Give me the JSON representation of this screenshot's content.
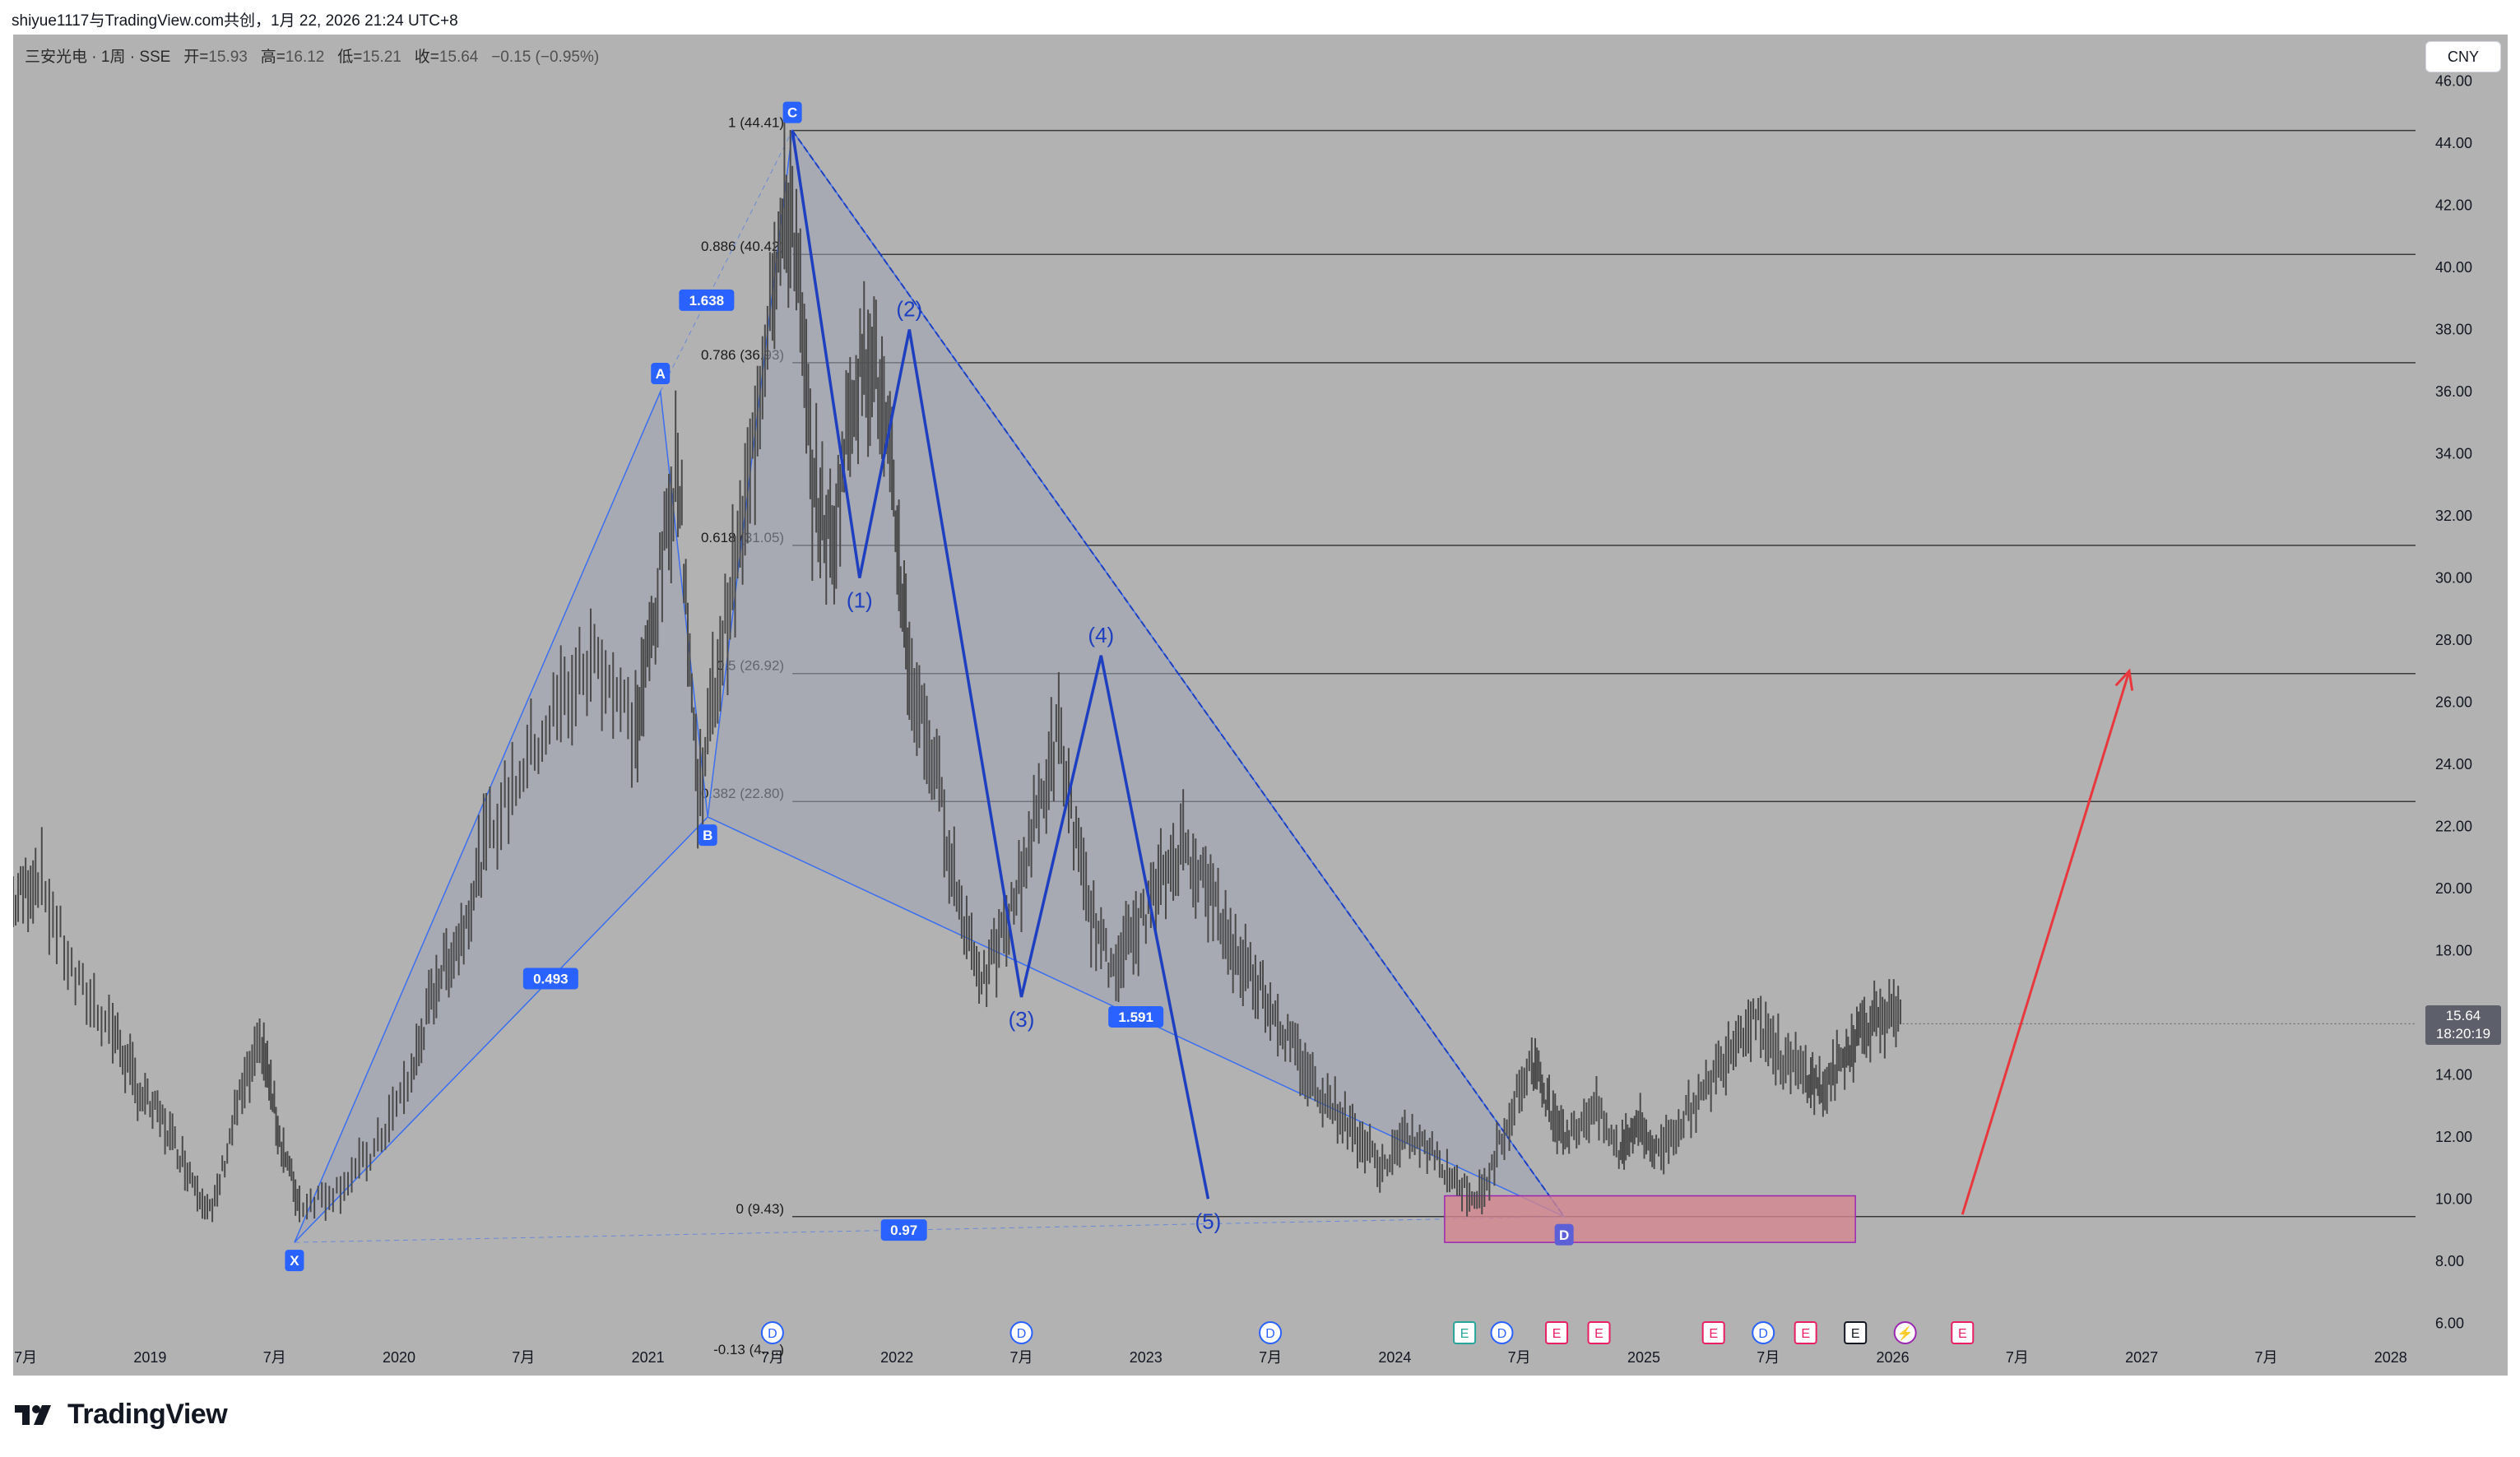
{
  "header": {
    "shared_by": "shiyue1117与TradingView.com共创，1月 22, 2026 21:24 UTC+8"
  },
  "symbol": {
    "name": "三安光电 · 1周 · SSE",
    "open_label": "开=",
    "open": "15.93",
    "high_label": "高=",
    "high": "16.12",
    "low_label": "低=",
    "low": "15.21",
    "close_label": "收=",
    "close": "15.64",
    "change": "−0.15 (−0.95%)"
  },
  "currency_button": "CNY",
  "last_price": {
    "value": "15.64",
    "countdown": "18:20:19"
  },
  "logo": "TradingView",
  "colors": {
    "chart_bg": "#b2b2b2",
    "pattern_fill": "#9fa4b3",
    "pattern_line": "#3b6ef0",
    "wave_line": "#1d3fc0",
    "arrow": "#e8383d",
    "box_fill": "#d4868e",
    "label_bg": "#2962ff"
  },
  "chart_data": {
    "type": "line",
    "x_axis": {
      "labels": [
        "7月",
        "2019",
        "7月",
        "2020",
        "7月",
        "2021",
        "7月",
        "2022",
        "7月",
        "2023",
        "7月",
        "2024",
        "7月",
        "2025",
        "7月",
        "2026",
        "7月",
        "2027",
        "7月",
        "2028"
      ],
      "range": [
        2018.45,
        2028.1
      ]
    },
    "y_axis": {
      "ticks": [
        "46.00",
        "44.00",
        "42.00",
        "40.00",
        "38.00",
        "36.00",
        "34.00",
        "32.00",
        "30.00",
        "28.00",
        "26.00",
        "24.00",
        "22.00",
        "20.00",
        "18.00",
        "16.00",
        "14.00",
        "12.00",
        "10.00",
        "8.00",
        "6.00"
      ],
      "range": [
        5.0,
        47.5
      ]
    },
    "price_series": {
      "name": "",
      "x": [
        2018.45,
        2018.55,
        2018.7,
        2018.85,
        2018.95,
        2019.05,
        2019.15,
        2019.25,
        2019.35,
        2019.45,
        2019.52,
        2019.6,
        2019.75,
        2019.9,
        2020.05,
        2020.15,
        2020.25,
        2020.35,
        2020.5,
        2020.65,
        2020.8,
        2020.95,
        2021.03,
        2021.12,
        2021.2,
        2021.3,
        2021.4,
        2021.5,
        2021.58,
        2021.66,
        2021.74,
        2021.82,
        2021.9,
        2021.98,
        2022.05,
        2022.15,
        2022.25,
        2022.35,
        2022.45,
        2022.55,
        2022.65,
        2022.75,
        2022.85,
        2022.95,
        2023.05,
        2023.15,
        2023.25,
        2023.35,
        2023.45,
        2023.55,
        2023.65,
        2023.75,
        2023.85,
        2023.95,
        2024.05,
        2024.15,
        2024.25,
        2024.35,
        2024.45,
        2024.55,
        2024.62,
        2024.7,
        2024.8,
        2024.9,
        2024.97,
        2025.05,
        2025.15,
        2025.25,
        2025.35,
        2025.45,
        2025.55,
        2025.65,
        2025.72,
        2025.8,
        2025.87,
        2025.95,
        2026.04
      ],
      "values": [
        19.5,
        20.5,
        17.0,
        15.5,
        13.5,
        12.5,
        11.0,
        9.5,
        13.0,
        15.0,
        12.0,
        9.8,
        10.3,
        11.5,
        14.0,
        17.0,
        18.5,
        21.5,
        24.0,
        26.0,
        27.5,
        25.0,
        29.0,
        34.0,
        23.0,
        28.0,
        32.5,
        40.0,
        42.0,
        33.0,
        31.0,
        36.0,
        37.5,
        33.0,
        27.0,
        24.0,
        19.5,
        17.0,
        19.0,
        22.0,
        25.0,
        20.0,
        17.5,
        18.5,
        20.0,
        21.5,
        20.0,
        18.0,
        17.0,
        15.5,
        14.0,
        13.0,
        12.0,
        11.0,
        12.0,
        11.5,
        10.5,
        10.0,
        12.5,
        14.5,
        13.0,
        12.0,
        13.0,
        11.5,
        12.5,
        11.5,
        12.5,
        13.5,
        15.0,
        16.0,
        14.5,
        14.0,
        13.5,
        14.5,
        15.5,
        16.0,
        15.64
      ]
    },
    "xabcd_pattern": {
      "points": [
        {
          "label": "X",
          "x": 2019.58,
          "y": 8.6
        },
        {
          "label": "A",
          "x": 2021.05,
          "y": 36.0
        },
        {
          "label": "B",
          "x": 2021.24,
          "y": 22.3
        },
        {
          "label": "C",
          "x": 2021.58,
          "y": 44.41
        },
        {
          "label": "D",
          "x": 2024.68,
          "y": 9.43
        }
      ],
      "ratios": [
        {
          "label": "0.493",
          "at": "XB"
        },
        {
          "label": "1.638",
          "at": "AC"
        },
        {
          "label": "1.591",
          "at": "BD"
        },
        {
          "label": "0.97",
          "at": "XD"
        }
      ]
    },
    "fib_levels": [
      {
        "label": "1 (44.41)",
        "value": 44.41
      },
      {
        "label": "0.886 (40.42)",
        "value": 40.42
      },
      {
        "label": "0.786 (36.93)",
        "value": 36.93
      },
      {
        "label": "0.618 (31.05)",
        "value": 31.05
      },
      {
        "label": "0.5 (26.92)",
        "value": 26.92
      },
      {
        "label": "0.382 (22.80)",
        "value": 22.8
      },
      {
        "label": "0 (9.43)",
        "value": 9.43
      },
      {
        "label": "-0.13 (4.…)",
        "value": 4.9
      }
    ],
    "elliott_waves": [
      {
        "label": "(1)",
        "x": 2021.85,
        "y": 30.0
      },
      {
        "label": "(2)",
        "x": 2022.05,
        "y": 38.0
      },
      {
        "label": "(3)",
        "x": 2022.5,
        "y": 16.5
      },
      {
        "label": "(4)",
        "x": 2022.82,
        "y": 27.5
      },
      {
        "label": "(5)",
        "x": 2023.25,
        "y": 10.0
      }
    ],
    "wave_start": {
      "x": 2021.58,
      "y": 44.41
    },
    "forecast_arrow": {
      "from": {
        "x": 2026.28,
        "y": 9.5
      },
      "to": {
        "x": 2026.95,
        "y": 27.0
      }
    },
    "target_zone": {
      "x0": 2024.2,
      "x1": 2025.85,
      "y0": 8.6,
      "y1": 10.1
    },
    "event_markers": [
      "D",
      "D",
      "D",
      "E",
      "D",
      "E",
      "E",
      "E",
      "D",
      "E",
      "E",
      "⚡",
      "E"
    ]
  }
}
